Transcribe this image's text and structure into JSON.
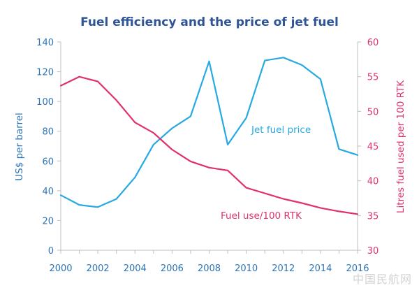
{
  "chart_data": {
    "type": "line",
    "title": "Fuel efficiency and the price of jet fuel",
    "x": [
      2000,
      2001,
      2002,
      2003,
      2004,
      2005,
      2006,
      2007,
      2008,
      2009,
      2010,
      2011,
      2012,
      2013,
      2014,
      2015,
      2016
    ],
    "x_ticks": [
      "2000",
      "2002",
      "2004",
      "2006",
      "2008",
      "2010",
      "2012",
      "2014",
      "2016"
    ],
    "xlim": [
      2000,
      2016
    ],
    "left_axis": {
      "label": "US$ per barrel",
      "ylim": [
        0,
        140
      ],
      "ticks": [
        "0",
        "20",
        "40",
        "60",
        "80",
        "100",
        "120",
        "140"
      ],
      "color": "#2e74b5"
    },
    "right_axis": {
      "label": "Litres fuel used per 100 RTK",
      "ylim": [
        30,
        60
      ],
      "ticks": [
        "30",
        "35",
        "40",
        "45",
        "50",
        "55",
        "60"
      ],
      "color": "#e0306f"
    },
    "series": [
      {
        "name": "Jet fuel price",
        "axis": "left",
        "color": "#27a9e1",
        "values": [
          37,
          30.5,
          29,
          34.5,
          49,
          71,
          82,
          90,
          127,
          71,
          89,
          127.5,
          129.5,
          124.5,
          115,
          68,
          64
        ]
      },
      {
        "name": "Fuel use/100 RTK",
        "axis": "right",
        "color": "#e0306f",
        "values": [
          53.7,
          55,
          54.3,
          51.6,
          48.4,
          46.9,
          44.5,
          42.8,
          41.9,
          41.5,
          39,
          38.2,
          37.4,
          36.8,
          36.1,
          35.6,
          35.2
        ]
      }
    ],
    "grid": false,
    "legend": "inline labels"
  },
  "watermark": "中国民航网"
}
